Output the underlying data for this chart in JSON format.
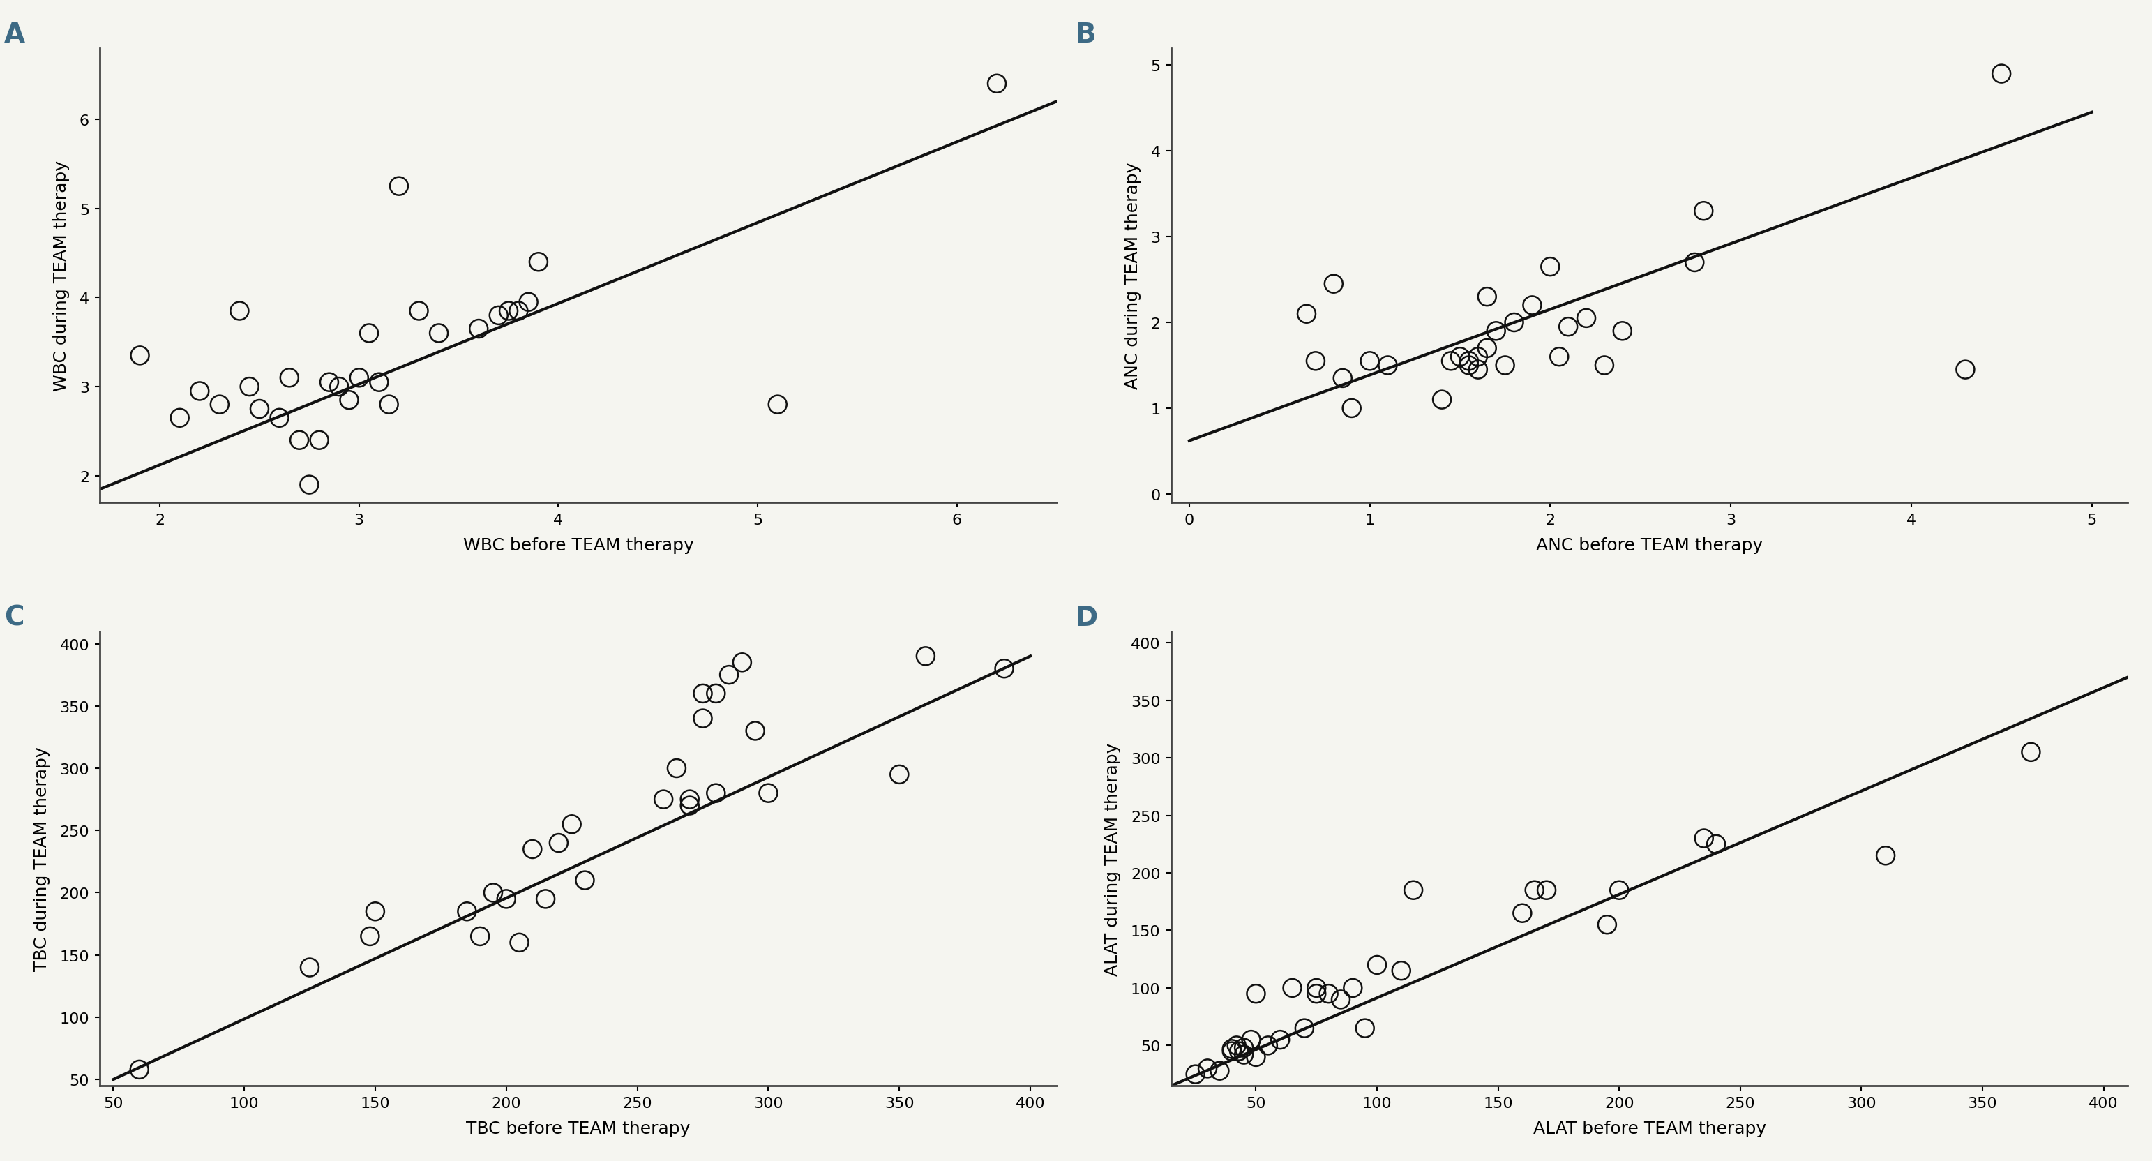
{
  "panel_A": {
    "label": "A",
    "xlabel": "WBC before TEAM therapy",
    "ylabel": "WBC during TEAM therapy",
    "xlim": [
      1.7,
      6.5
    ],
    "ylim": [
      1.7,
      6.8
    ],
    "xticks": [
      2,
      3,
      4,
      5,
      6
    ],
    "yticks": [
      2,
      3,
      4,
      5,
      6
    ],
    "x": [
      1.9,
      2.1,
      2.2,
      2.3,
      2.4,
      2.45,
      2.5,
      2.6,
      2.65,
      2.7,
      2.75,
      2.8,
      2.85,
      2.9,
      2.95,
      3.0,
      3.05,
      3.1,
      3.15,
      3.2,
      3.3,
      3.4,
      3.6,
      3.7,
      3.75,
      3.8,
      3.85,
      3.9,
      5.1,
      6.2
    ],
    "y": [
      3.35,
      2.65,
      2.95,
      2.8,
      3.85,
      3.0,
      2.75,
      2.65,
      3.1,
      2.4,
      1.9,
      2.4,
      3.05,
      3.0,
      2.85,
      3.1,
      3.6,
      3.05,
      2.8,
      5.25,
      3.85,
      3.6,
      3.65,
      3.8,
      3.85,
      3.85,
      3.95,
      4.4,
      2.8,
      6.4
    ],
    "line_x": [
      1.7,
      6.5
    ],
    "line_y": [
      1.85,
      6.2
    ]
  },
  "panel_B": {
    "label": "B",
    "xlabel": "ANC before TEAM therapy",
    "ylabel": "ANC during TEAM therapy",
    "xlim": [
      -0.1,
      5.2
    ],
    "ylim": [
      -0.1,
      5.2
    ],
    "xticks": [
      0,
      1,
      2,
      3,
      4,
      5
    ],
    "yticks": [
      0,
      1,
      2,
      3,
      4,
      5
    ],
    "x": [
      0.65,
      0.7,
      0.8,
      0.85,
      0.9,
      1.0,
      1.1,
      1.4,
      1.45,
      1.5,
      1.55,
      1.55,
      1.6,
      1.6,
      1.65,
      1.65,
      1.7,
      1.75,
      1.8,
      1.9,
      2.0,
      2.05,
      2.1,
      2.2,
      2.3,
      2.4,
      2.8,
      2.85,
      4.3,
      4.5
    ],
    "y": [
      2.1,
      1.55,
      2.45,
      1.35,
      1.0,
      1.55,
      1.5,
      1.1,
      1.55,
      1.6,
      1.55,
      1.5,
      1.45,
      1.6,
      1.7,
      2.3,
      1.9,
      1.5,
      2.0,
      2.2,
      2.65,
      1.6,
      1.95,
      2.05,
      1.5,
      1.9,
      2.7,
      3.3,
      1.45,
      4.9
    ],
    "line_x": [
      0.0,
      5.0
    ],
    "line_y": [
      0.62,
      4.45
    ]
  },
  "panel_C": {
    "label": "C",
    "xlabel": "TBC before TEAM therapy",
    "ylabel": "TBC during TEAM therapy",
    "xlim": [
      45,
      410
    ],
    "ylim": [
      45,
      410
    ],
    "xticks": [
      50,
      100,
      150,
      200,
      250,
      300,
      350,
      400
    ],
    "yticks": [
      50,
      100,
      150,
      200,
      250,
      300,
      350,
      400
    ],
    "x": [
      60,
      125,
      148,
      150,
      185,
      190,
      195,
      200,
      205,
      210,
      215,
      220,
      225,
      230,
      260,
      265,
      270,
      270,
      275,
      275,
      280,
      280,
      285,
      290,
      295,
      300,
      350,
      360,
      390
    ],
    "y": [
      58,
      140,
      165,
      185,
      185,
      165,
      200,
      195,
      160,
      235,
      195,
      240,
      255,
      210,
      275,
      300,
      275,
      270,
      360,
      340,
      280,
      360,
      375,
      385,
      330,
      280,
      295,
      390,
      380
    ],
    "line_x": [
      50,
      400
    ],
    "line_y": [
      50,
      390
    ]
  },
  "panel_D": {
    "label": "D",
    "xlabel": "ALAT before TEAM therapy",
    "ylabel": "ALAT during TEAM therapy",
    "xlim": [
      15,
      410
    ],
    "ylim": [
      15,
      410
    ],
    "xticks": [
      50,
      100,
      150,
      200,
      250,
      300,
      350,
      400
    ],
    "yticks": [
      50,
      100,
      150,
      200,
      250,
      300,
      350,
      400
    ],
    "x": [
      25,
      30,
      35,
      40,
      40,
      42,
      43,
      45,
      45,
      48,
      50,
      50,
      55,
      60,
      65,
      70,
      75,
      75,
      80,
      85,
      90,
      95,
      100,
      110,
      115,
      160,
      165,
      170,
      195,
      200,
      235,
      240,
      310,
      370
    ],
    "y": [
      25,
      30,
      28,
      45,
      47,
      50,
      45,
      48,
      42,
      55,
      95,
      40,
      50,
      55,
      100,
      65,
      95,
      100,
      95,
      90,
      100,
      65,
      120,
      115,
      185,
      165,
      185,
      185,
      155,
      185,
      230,
      225,
      215,
      305
    ],
    "line_x": [
      15,
      410
    ],
    "line_y": [
      15,
      370
    ]
  },
  "label_color": "#3d6a85",
  "label_fontsize": 28,
  "axis_fontsize": 18,
  "tick_fontsize": 16,
  "marker_size": 10,
  "line_width": 3.0,
  "line_color": "#111111",
  "marker_color": "none",
  "marker_edge_color": "#111111",
  "marker_edge_width": 1.8,
  "spine_linewidth": 2.0,
  "bg_color": "#f5f5f0"
}
